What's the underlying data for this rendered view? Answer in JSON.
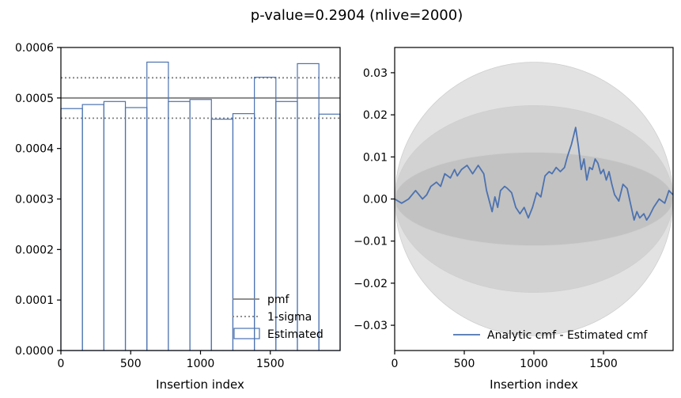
{
  "title": "p-value=0.2904 (nlive=2000)",
  "colors": {
    "estimated": "#4c72b0",
    "pmf": "#808080",
    "band_outer": "#e2e2e2",
    "band_mid": "#d2d2d2",
    "band_inner": "#c2c2c2"
  },
  "chart_data": [
    {
      "type": "histogram",
      "xlabel": "Insertion index",
      "ylabel": "",
      "xlim": [
        0,
        2000
      ],
      "ylim": [
        0,
        0.0006
      ],
      "xticks": [
        0,
        500,
        1000,
        1500
      ],
      "xtick_labels": [
        "0",
        "500",
        "1000",
        "1500"
      ],
      "yticks": [
        0,
        0.0001,
        0.0002,
        0.0003,
        0.0004,
        0.0005,
        0.0006
      ],
      "ytick_labels": [
        "0.0000",
        "0.0001",
        "0.0002",
        "0.0003",
        "0.0004",
        "0.0005",
        "0.0006"
      ],
      "legend_position": "lower-right",
      "pmf": 0.0005,
      "sigma_lower": 0.00046,
      "sigma_upper": 0.00054,
      "bin_edges": [
        0,
        154,
        308,
        462,
        616,
        770,
        924,
        1078,
        1232,
        1386,
        1540,
        1694,
        1848,
        2000
      ],
      "estimated": [
        0.000479,
        0.000487,
        0.000493,
        0.000481,
        0.000571,
        0.000493,
        0.000497,
        0.000458,
        0.000469,
        0.000541,
        0.000493,
        0.000568,
        0.000468
      ],
      "legend": [
        "pmf",
        "1-sigma",
        "Estimated"
      ]
    },
    {
      "type": "line",
      "xlabel": "Insertion index",
      "ylabel": "",
      "xlim": [
        0,
        2000
      ],
      "ylim": [
        -0.036,
        0.036
      ],
      "xticks": [
        0,
        500,
        1000,
        1500
      ],
      "xtick_labels": [
        "0",
        "500",
        "1000",
        "1500"
      ],
      "yticks": [
        -0.03,
        -0.02,
        -0.01,
        0.0,
        0.01,
        0.02,
        0.03
      ],
      "ytick_labels": [
        "−0.03",
        "−0.02",
        "−0.01",
        "0.00",
        "0.01",
        "0.02",
        "0.03"
      ],
      "legend_position": "lower-right",
      "legend": [
        "Analytic cmf - Estimated cmf"
      ],
      "band_half_widths_at_center": [
        0.0325,
        0.0222,
        0.0111
      ],
      "x": [
        0,
        50,
        100,
        150,
        200,
        230,
        260,
        300,
        330,
        360,
        400,
        430,
        450,
        480,
        520,
        560,
        600,
        640,
        660,
        700,
        720,
        740,
        760,
        790,
        810,
        840,
        870,
        900,
        930,
        960,
        990,
        1020,
        1050,
        1080,
        1110,
        1130,
        1160,
        1190,
        1220,
        1240,
        1270,
        1300,
        1320,
        1340,
        1360,
        1380,
        1400,
        1420,
        1440,
        1460,
        1480,
        1500,
        1520,
        1540,
        1560,
        1580,
        1610,
        1640,
        1670,
        1700,
        1720,
        1740,
        1760,
        1790,
        1810,
        1830,
        1860,
        1900,
        1940,
        1970,
        2000
      ],
      "y": [
        0.0,
        -0.001,
        0.0,
        0.002,
        0.0,
        0.001,
        0.003,
        0.004,
        0.003,
        0.006,
        0.005,
        0.007,
        0.0055,
        0.007,
        0.008,
        0.006,
        0.008,
        0.006,
        0.002,
        -0.003,
        0.0005,
        -0.002,
        0.002,
        0.003,
        0.0025,
        0.0015,
        -0.002,
        -0.0035,
        -0.002,
        -0.0045,
        -0.002,
        0.0015,
        0.0005,
        0.0055,
        0.0065,
        0.006,
        0.0075,
        0.0065,
        0.0075,
        0.01,
        0.013,
        0.017,
        0.0125,
        0.007,
        0.0095,
        0.0045,
        0.0075,
        0.007,
        0.0095,
        0.0085,
        0.006,
        0.007,
        0.0045,
        0.0065,
        0.0035,
        0.001,
        -0.0005,
        0.0035,
        0.0025,
        -0.002,
        -0.005,
        -0.003,
        -0.0045,
        -0.0035,
        -0.005,
        -0.004,
        -0.002,
        0.0,
        -0.001,
        0.002,
        0.001
      ]
    }
  ]
}
